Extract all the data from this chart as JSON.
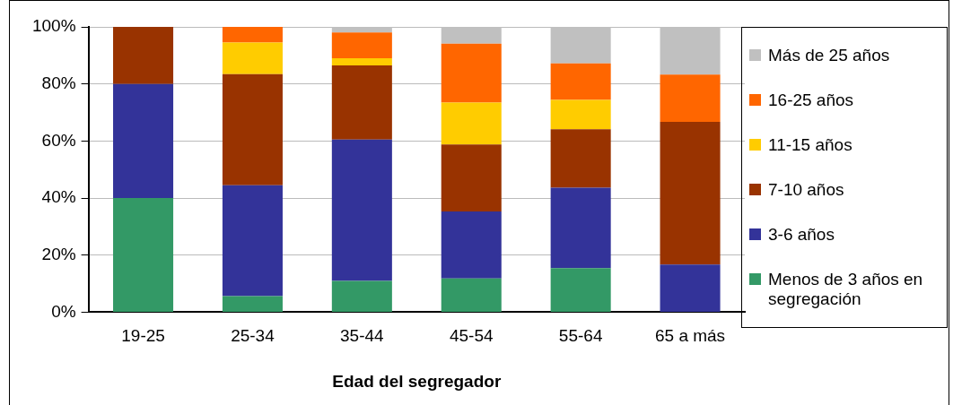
{
  "chart_data": {
    "type": "bar",
    "stacked": true,
    "xlabel": "Edad del segregador",
    "categories": [
      "19-25",
      "25-34",
      "35-44",
      "45-54",
      "55-64",
      "65 a más"
    ],
    "series": [
      {
        "name": "Menos de 3 años en segregación",
        "color": "#339966",
        "values": [
          40,
          5.6,
          11,
          11.8,
          15.4,
          0
        ]
      },
      {
        "name": "3-6 años",
        "color": "#333399",
        "values": [
          40,
          38.9,
          49.5,
          23.5,
          28.2,
          16.7
        ]
      },
      {
        "name": "7-10 años",
        "color": "#993300",
        "values": [
          20,
          38.9,
          26,
          23.5,
          20.5,
          50
        ]
      },
      {
        "name": "11-15 años",
        "color": "#ffcc00",
        "values": [
          0,
          11.1,
          2.5,
          14.7,
          10.3,
          0
        ]
      },
      {
        "name": "16-25 años",
        "color": "#ff6600",
        "values": [
          0,
          5.5,
          9,
          20.6,
          12.8,
          16.6
        ]
      },
      {
        "name": "Más de 25 años",
        "color": "#c0c0c0",
        "values": [
          0,
          0,
          2,
          5.9,
          12.8,
          16.7
        ]
      }
    ],
    "ylim": [
      0,
      100
    ],
    "yticks": [
      {
        "value": 0,
        "label": "0%"
      },
      {
        "value": 20,
        "label": "20%"
      },
      {
        "value": 40,
        "label": "40%"
      },
      {
        "value": 60,
        "label": "60%"
      },
      {
        "value": 80,
        "label": "80%"
      },
      {
        "value": 100,
        "label": "100%"
      }
    ],
    "grid": "y",
    "legend": "right"
  }
}
